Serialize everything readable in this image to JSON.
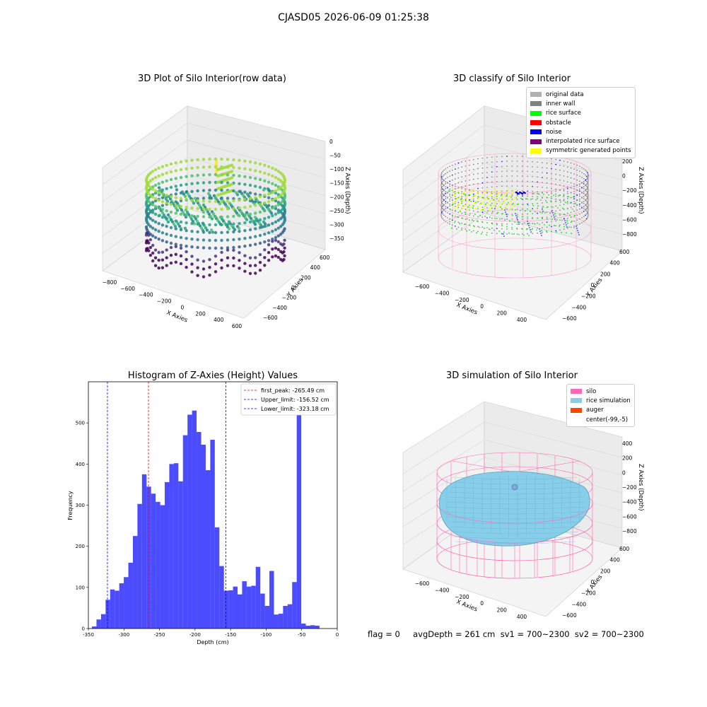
{
  "suptitle": "CJASD05 2026-06-09 01:25:38",
  "footer": "flag = 0     avgDepth = 261 cm  sv1 = 700~2300  sv2 = 700~2300",
  "colors": {
    "bar": "#0000ff",
    "first_peak": "#ff0000",
    "limits": "#0000ff",
    "silo": "#ff69b4",
    "rice_sim": "#87ceeb",
    "auger": "#ff4500"
  },
  "chart_data": [
    {
      "type": "scatter",
      "title": "3D Plot of Silo Interior(row data)",
      "xlabel": "X Axies",
      "ylabel": "Y Axies",
      "zlabel": "Z Axies (Depth)",
      "x_ticks": [
        "−800",
        "−600",
        "−400",
        "−200",
        "0",
        "200",
        "400",
        "600"
      ],
      "y_ticks": [
        "−600",
        "−400",
        "−200",
        "0",
        "200",
        "400",
        "600"
      ],
      "z_ticks": [
        "0",
        "−50",
        "−100",
        "−150",
        "−200",
        "−250",
        "−300",
        "−350"
      ],
      "colormap": "viridis"
    },
    {
      "type": "scatter",
      "title": "3D classify of Silo Interior",
      "xlabel": "X Axies",
      "ylabel": "Y Axies",
      "zlabel": "Z Axies (Depth)",
      "x_ticks": [
        "−600",
        "−400",
        "−200",
        "0",
        "200",
        "400"
      ],
      "y_ticks": [
        "−600",
        "−400",
        "−200",
        "0",
        "200",
        "400",
        "600"
      ],
      "z_ticks": [
        "200",
        "0",
        "−200",
        "−400",
        "−600",
        "−800"
      ],
      "legend": [
        {
          "label": "original data",
          "color": "#b0b0b0"
        },
        {
          "label": "inner wall",
          "color": "#808080"
        },
        {
          "label": "rice surface",
          "color": "#00ff00"
        },
        {
          "label": "obstacle",
          "color": "#ff0000"
        },
        {
          "label": "noise",
          "color": "#0000ff"
        },
        {
          "label": "interpolated rice surface",
          "color": "#800080"
        },
        {
          "label": "symmetric generated points",
          "color": "#ffff00"
        }
      ]
    },
    {
      "type": "bar",
      "title": "Histogram of Z-Axies (Height) Values",
      "xlabel": "Depth (cm)",
      "ylabel": "Frequency",
      "xlim": [
        -350,
        0
      ],
      "ylim": [
        0,
        600
      ],
      "x_ticks": [
        -350,
        -300,
        -250,
        -200,
        -150,
        -100,
        -50,
        0
      ],
      "y_ticks": [
        0,
        100,
        200,
        300,
        400,
        500
      ],
      "bin_start": -345,
      "bin_width": 6.4,
      "values": [
        5,
        22,
        35,
        70,
        95,
        92,
        110,
        125,
        160,
        225,
        303,
        375,
        345,
        328,
        308,
        300,
        356,
        400,
        402,
        358,
        470,
        520,
        530,
        478,
        447,
        385,
        459,
        246,
        152,
        92,
        93,
        102,
        83,
        115,
        102,
        104,
        150,
        85,
        55,
        140,
        34,
        36,
        55,
        59,
        113,
        560,
        12,
        7,
        8,
        7
      ],
      "legend": [
        {
          "label": "first_peak: -265.49 cm",
          "value": -265.49,
          "color": "#ff0000"
        },
        {
          "label": "Upper_limit: -156.52 cm",
          "value": -156.52,
          "color": "#0000ff"
        },
        {
          "label": "Lower_limit: -323.18 cm",
          "value": -323.18,
          "color": "#0000ff"
        }
      ]
    },
    {
      "type": "area",
      "title": "3D simulation of Silo Interior",
      "xlabel": "X Axies",
      "ylabel": "Y Axies",
      "zlabel": "Z Axies (Depth)",
      "x_ticks": [
        "−600",
        "−400",
        "−200",
        "0",
        "200",
        "400"
      ],
      "y_ticks": [
        "−600",
        "−400",
        "−200",
        "0",
        "200",
        "400",
        "600"
      ],
      "z_ticks": [
        "400",
        "200",
        "0",
        "−200",
        "−400",
        "−600",
        "−800"
      ],
      "legend": [
        {
          "label": "silo",
          "color": "#ff69b4"
        },
        {
          "label": "rice simulation",
          "color": "#87ceeb"
        },
        {
          "label": "auger",
          "color": "#ff4500"
        },
        {
          "label": "center(-99,-5)",
          "color": ""
        }
      ]
    }
  ]
}
